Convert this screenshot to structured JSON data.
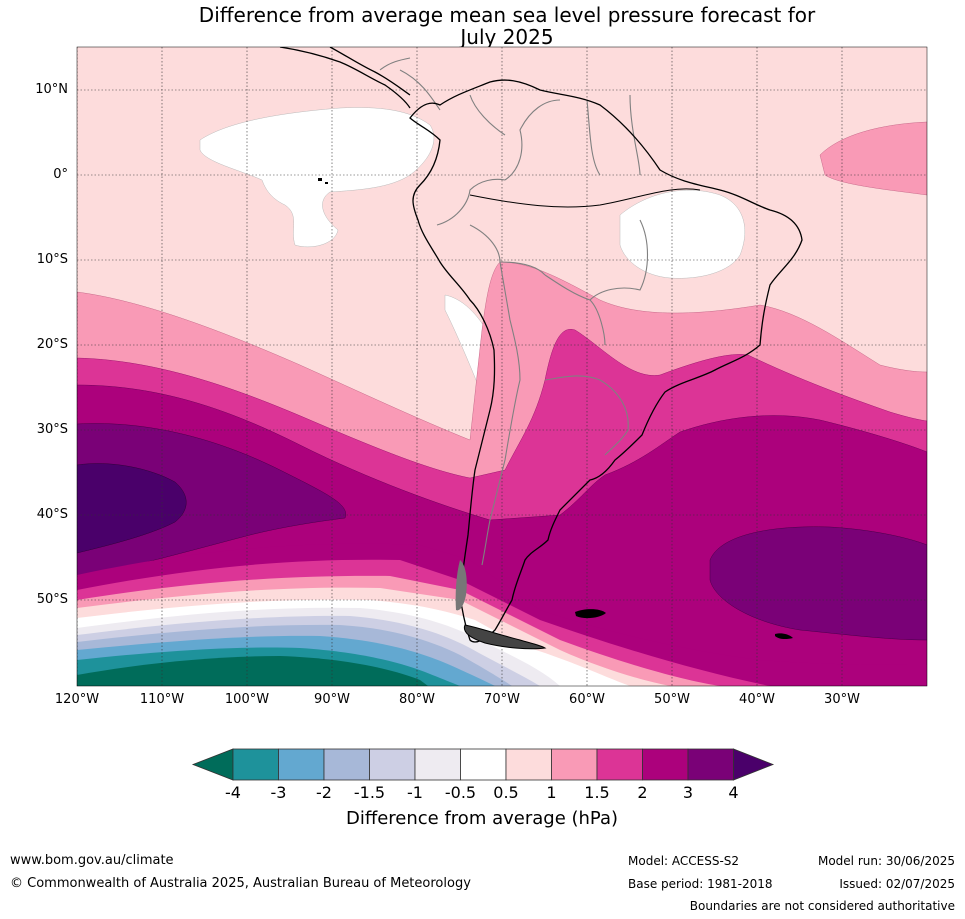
{
  "title_line1": "Difference from average mean sea level pressure forecast for",
  "title_line2": "July 2025",
  "lat_labels": [
    "10°N",
    "0°",
    "10°S",
    "20°S",
    "30°S",
    "40°S",
    "50°S"
  ],
  "lon_labels": [
    "120°W",
    "110°W",
    "100°W",
    "90°W",
    "80°W",
    "70°W",
    "60°W",
    "50°W",
    "40°W",
    "30°W"
  ],
  "colorbar": {
    "title": "Difference from average (hPa)",
    "ticks": [
      "-4",
      "-3",
      "-2",
      "-1.5",
      "-1",
      "-0.5",
      "0.5",
      "1",
      "1.5",
      "2",
      "3",
      "4"
    ],
    "colors": {
      "below_-4": "#006c5a",
      "-4_to_-3": "#1e929b",
      "-3_to_-2": "#63a8d0",
      "-2_to_-1.5": "#a7b8d8",
      "-1.5_to_-1": "#cdcfe4",
      "-1_to_-0.5": "#eeebf1",
      "-0.5_to_0.5": "#ffffff",
      "0.5_to_1": "#fddcdc",
      "1_to_1.5": "#f99ab6",
      "1.5_to_2": "#dc3496",
      "2_to_3": "#ac017c",
      "3_to_4": "#7a0177",
      "above_4": "#4a006a"
    }
  },
  "footer": {
    "website": "www.bom.gov.au/climate",
    "copyright": "© Commonwealth of Australia 2025, Australian Bureau of Meteorology",
    "model": "Model: ACCESS-S2",
    "base_period": "Base period: 1981-2018",
    "model_run": "Model run: 30/06/2025",
    "issued": "Issued: 02/07/2025",
    "disclaimer": "Boundaries are not considered authoritative"
  }
}
